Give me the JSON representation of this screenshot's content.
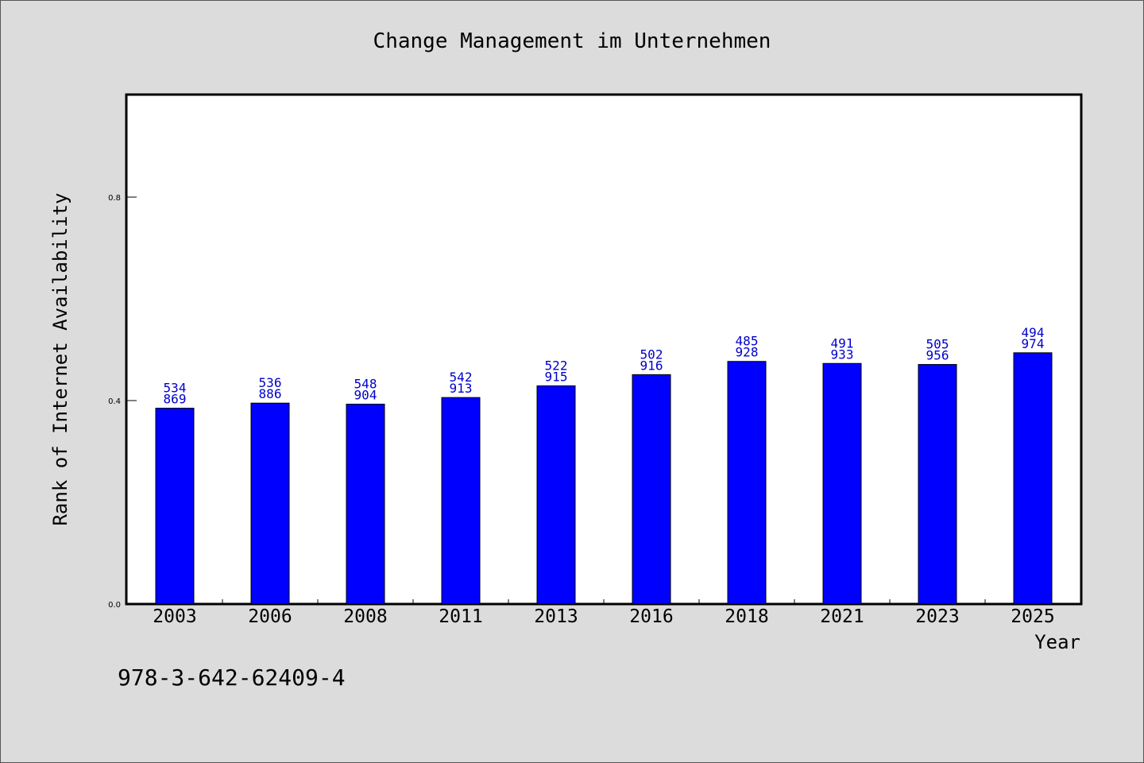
{
  "chart_data": {
    "type": "bar",
    "title": "Change Management im Unternehmen",
    "xlabel": "Year",
    "ylabel": "Rank of Internet Availability",
    "categories": [
      "2003",
      "2006",
      "2008",
      "2011",
      "2013",
      "2016",
      "2018",
      "2021",
      "2023",
      "2025"
    ],
    "values": [
      0.385,
      0.395,
      0.393,
      0.406,
      0.429,
      0.451,
      0.477,
      0.473,
      0.471,
      0.494
    ],
    "bar_labels_top": [
      "534",
      "536",
      "548",
      "542",
      "522",
      "502",
      "485",
      "491",
      "505",
      "494"
    ],
    "bar_labels_bottom": [
      "869",
      "886",
      "904",
      "913",
      "915",
      "916",
      "928",
      "933",
      "956",
      "974"
    ],
    "ylim": [
      0.0,
      1.0
    ],
    "yticks": [
      "0.0",
      "0.4",
      "0.8"
    ],
    "grid": false,
    "legend": "none",
    "colors": {
      "bar": "#0000ff",
      "bar_edge": "#000000",
      "data_label": "#0000cc",
      "plot_background": "#ffffff",
      "figure_background": "#dcdcdc"
    }
  },
  "footer": {
    "code": "978-3-642-62409-4"
  }
}
